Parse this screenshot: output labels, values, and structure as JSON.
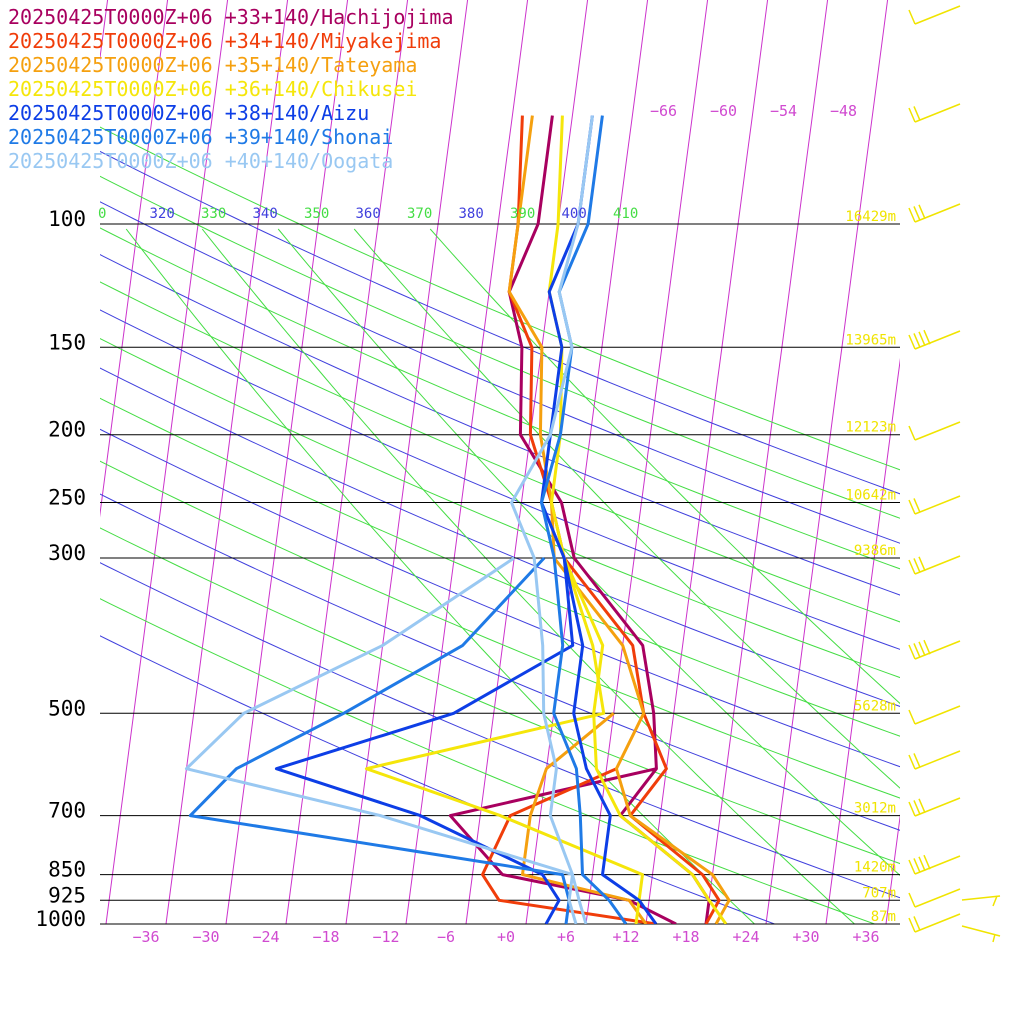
{
  "chart_data": {
    "type": "line",
    "title": "",
    "xlabel": "",
    "ylabel": "",
    "x_scale": "skewed temperature (deg C)",
    "y_scale": "log pressure (hPa)",
    "xlim": [
      -40,
      40
    ],
    "ylim": [
      1000,
      100
    ],
    "grid": true,
    "legend_placement": "top-left",
    "pressure_levels": [
      {
        "p": 100,
        "label": "100",
        "height": "16429m"
      },
      {
        "p": 150,
        "label": "150",
        "height": "13965m"
      },
      {
        "p": 200,
        "label": "200",
        "height": "12123m"
      },
      {
        "p": 250,
        "label": "250",
        "height": "10642m"
      },
      {
        "p": 300,
        "label": "300",
        "height": "9386m"
      },
      {
        "p": 500,
        "label": "500",
        "height": "5628m"
      },
      {
        "p": 700,
        "label": "700",
        "height": "3012m"
      },
      {
        "p": 850,
        "label": "850",
        "height": "1420m"
      },
      {
        "p": 925,
        "label": "925",
        "height": "707m"
      },
      {
        "p": 1000,
        "label": "1000",
        "height": "87m"
      }
    ],
    "temperature_ticks": [
      {
        "t": -36,
        "label": "−36"
      },
      {
        "t": -30,
        "label": "−30"
      },
      {
        "t": -24,
        "label": "−24"
      },
      {
        "t": -18,
        "label": "−18"
      },
      {
        "t": -12,
        "label": "−12"
      },
      {
        "t": -6,
        "label": "−6"
      },
      {
        "t": 0,
        "label": "+0"
      },
      {
        "t": 6,
        "label": "+6"
      },
      {
        "t": 12,
        "label": "+12"
      },
      {
        "t": 18,
        "label": "+18"
      },
      {
        "t": 24,
        "label": "+24"
      },
      {
        "t": 30,
        "label": "+30"
      },
      {
        "t": 36,
        "label": "+36"
      }
    ],
    "theta_labels": [
      "0",
      "320",
      "330",
      "340",
      "350",
      "360",
      "370",
      "380",
      "390",
      "400",
      "410"
    ],
    "mixing_ratio_labels": [
      "−66",
      "−60",
      "−54",
      "−48"
    ],
    "series": [
      {
        "name": "20250425T0000Z+06 +33+140/Hachijojima",
        "color": "#a8005f",
        "temperature": [
          [
            1000,
            20
          ],
          [
            925,
            20
          ],
          [
            850,
            18
          ],
          [
            700,
            10
          ],
          [
            600,
            13
          ],
          [
            500,
            12
          ],
          [
            400,
            10
          ],
          [
            300,
            2
          ],
          [
            250,
            0
          ],
          [
            200,
            -5
          ],
          [
            150,
            -6
          ],
          [
            125,
            -8
          ],
          [
            100,
            -6
          ],
          [
            70,
            -6
          ]
        ],
        "dewpoint": [
          [
            1000,
            17
          ],
          [
            925,
            12
          ],
          [
            850,
            -1
          ],
          [
            700,
            -7
          ],
          [
            600,
            13
          ]
        ]
      },
      {
        "name": "20250425T0000Z+06 +34+140/Miyakejima",
        "color": "#f03d0a",
        "temperature": [
          [
            1000,
            20
          ],
          [
            925,
            21
          ],
          [
            850,
            19
          ],
          [
            700,
            11
          ],
          [
            600,
            14
          ],
          [
            500,
            11
          ],
          [
            400,
            9
          ],
          [
            300,
            1
          ],
          [
            250,
            -1
          ],
          [
            200,
            -4
          ],
          [
            150,
            -5
          ],
          [
            125,
            -8
          ],
          [
            100,
            -8
          ],
          [
            70,
            -9
          ]
        ],
        "dewpoint": [
          [
            1000,
            15
          ],
          [
            925,
            -1
          ],
          [
            850,
            -3
          ],
          [
            700,
            -1
          ],
          [
            600,
            9
          ]
        ]
      },
      {
        "name": "20250425T0000Z+06 +35+140/Tateyama",
        "color": "#f5a00f",
        "temperature": [
          [
            1000,
            21
          ],
          [
            925,
            22
          ],
          [
            850,
            20
          ],
          [
            700,
            11
          ],
          [
            600,
            9
          ],
          [
            500,
            11
          ],
          [
            400,
            8
          ],
          [
            300,
            0
          ],
          [
            250,
            -1
          ],
          [
            200,
            -3
          ],
          [
            150,
            -4
          ],
          [
            125,
            -8
          ],
          [
            100,
            -8
          ],
          [
            70,
            -8
          ]
        ],
        "dewpoint": [
          [
            1000,
            14
          ],
          [
            925,
            12
          ],
          [
            850,
            1
          ],
          [
            700,
            1
          ],
          [
            600,
            2
          ],
          [
            500,
            8
          ]
        ]
      },
      {
        "name": "20250425T0000Z+06 +36+140/Chikusei",
        "color": "#f5e60a",
        "temperature": [
          [
            1000,
            22
          ],
          [
            925,
            20
          ],
          [
            850,
            18
          ],
          [
            700,
            10
          ],
          [
            600,
            7
          ],
          [
            500,
            6
          ],
          [
            400,
            6
          ],
          [
            300,
            1
          ],
          [
            250,
            -1
          ],
          [
            200,
            -1
          ],
          [
            150,
            -2
          ],
          [
            125,
            -4
          ],
          [
            100,
            -4
          ],
          [
            70,
            -5
          ]
        ],
        "dewpoint": [
          [
            1000,
            13
          ],
          [
            925,
            13
          ],
          [
            850,
            13
          ],
          [
            700,
            -2
          ],
          [
            600,
            -16
          ],
          [
            500,
            7
          ],
          [
            400,
            5
          ],
          [
            300,
            1
          ]
        ]
      },
      {
        "name": "20250425T0000Z+06 +38+140/Aizu",
        "color": "#0d3ee6",
        "temperature": [
          [
            1000,
            15
          ],
          [
            925,
            13
          ],
          [
            850,
            9
          ],
          [
            700,
            9
          ],
          [
            600,
            6
          ],
          [
            500,
            4
          ],
          [
            400,
            4
          ],
          [
            300,
            1
          ],
          [
            250,
            -2
          ],
          [
            200,
            -2
          ],
          [
            150,
            -2
          ],
          [
            125,
            -4
          ],
          [
            100,
            -2
          ],
          [
            70,
            -2
          ]
        ],
        "dewpoint": [
          [
            1000,
            4
          ],
          [
            925,
            5
          ],
          [
            850,
            3
          ],
          [
            700,
            -10
          ],
          [
            600,
            -25
          ],
          [
            500,
            -8
          ],
          [
            400,
            3
          ],
          [
            300,
            1
          ]
        ]
      },
      {
        "name": "20250425T0000Z+06 +39+140/Shonai",
        "color": "#1f7ae6",
        "temperature": [
          [
            1000,
            12
          ],
          [
            925,
            10
          ],
          [
            850,
            7
          ],
          [
            700,
            6
          ],
          [
            600,
            5
          ],
          [
            500,
            2
          ],
          [
            400,
            2
          ],
          [
            300,
            0
          ],
          [
            250,
            -2
          ],
          [
            200,
            -1
          ],
          [
            150,
            -1
          ],
          [
            125,
            -3
          ],
          [
            100,
            -1
          ],
          [
            70,
            -1
          ]
        ],
        "dewpoint": [
          [
            1000,
            6
          ],
          [
            925,
            6
          ],
          [
            850,
            5
          ],
          [
            700,
            -33
          ],
          [
            600,
            -29
          ],
          [
            500,
            -19
          ],
          [
            400,
            -8
          ],
          [
            300,
            -1
          ]
        ]
      },
      {
        "name": "20250425T0000Z+06 +40+140/Oogata",
        "color": "#99c8f2",
        "temperature": [
          [
            1000,
            8
          ],
          [
            925,
            7
          ],
          [
            850,
            6
          ],
          [
            700,
            3
          ],
          [
            600,
            3
          ],
          [
            500,
            1
          ],
          [
            400,
            0
          ],
          [
            300,
            -2
          ],
          [
            250,
            -5
          ],
          [
            200,
            -2
          ],
          [
            150,
            -1
          ],
          [
            125,
            -3
          ],
          [
            100,
            -2
          ],
          [
            70,
            -2
          ]
        ],
        "dewpoint": [
          [
            1000,
            7
          ],
          [
            925,
            6
          ],
          [
            850,
            6
          ],
          [
            700,
            -14
          ],
          [
            600,
            -34
          ],
          [
            500,
            -29
          ],
          [
            400,
            -16
          ],
          [
            300,
            -4
          ]
        ]
      }
    ]
  }
}
